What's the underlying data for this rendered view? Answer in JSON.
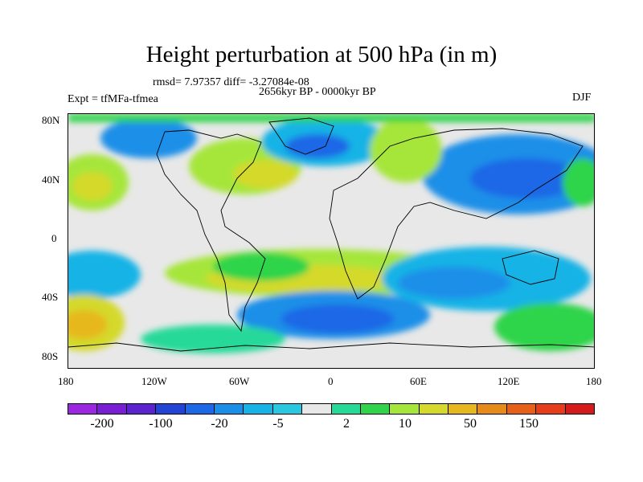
{
  "title": "Height perturbation at 500 hPa (in m)",
  "stats": "rmsd= 7.97357 diff= -3.27084e-08",
  "period": "2656kyr BP - 0000kyr BP",
  "experiment": "Expt = tfMFa-tfmea",
  "season": "DJF",
  "lat_ticks": [
    "80N",
    "40N",
    "0",
    "40S",
    "80S"
  ],
  "lon_ticks": [
    "180",
    "120W",
    "60W",
    "0",
    "60E",
    "120E",
    "180"
  ],
  "colorbar": {
    "colors": [
      "#9b27e0",
      "#7a1ed6",
      "#5a23cf",
      "#2243d4",
      "#1d68e6",
      "#1b8fe8",
      "#17b3e6",
      "#29c8e0",
      "#e8e8e8",
      "#27d999",
      "#2fd44a",
      "#a6e63a",
      "#d4d92b",
      "#e6b81d",
      "#e68a19",
      "#e6601a",
      "#e63c1b",
      "#d41a1a"
    ],
    "labels": [
      "-200",
      "-100",
      "-20",
      "-5",
      "2",
      "10",
      "50",
      "150"
    ]
  }
}
